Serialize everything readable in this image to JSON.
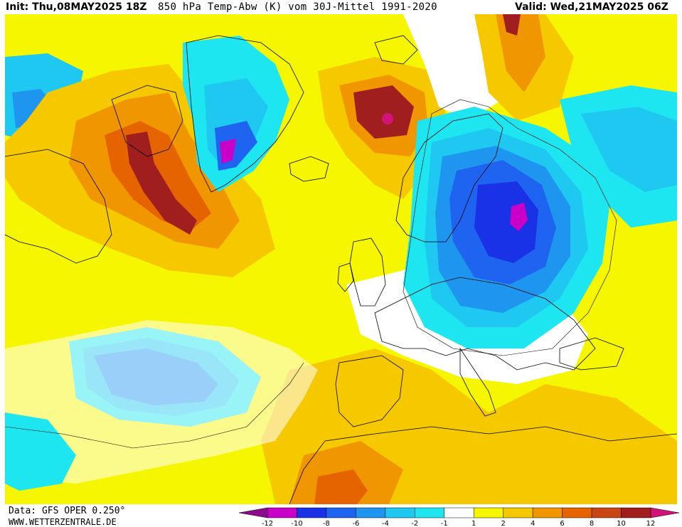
{
  "header": {
    "init": "Init: Thu,08MAY2025 18Z",
    "title": "850 hPa Temp-Abw (K) vom 30J-Mittel 1991-2020",
    "valid": "Valid: Wed,21MAY2025 06Z"
  },
  "footer": {
    "data_source": "Data: GFS OPER 0.250°",
    "website": "WWW.WETTERZENTRALE.DE"
  },
  "legend": {
    "ticks": [
      "-12",
      "-10",
      "-8",
      "-6",
      "-4",
      "-2",
      "-1",
      "1",
      "2",
      "4",
      "6",
      "8",
      "10",
      "12"
    ],
    "colors": [
      "#8c0a8c",
      "#c800c8",
      "#1a32e6",
      "#1e64f0",
      "#1e96f0",
      "#1ec8f0",
      "#1ee6f0",
      "#ffffff",
      "#f6f600",
      "#f6c800",
      "#f09600",
      "#e66400",
      "#c84614",
      "#a01e1e",
      "#d21478"
    ]
  },
  "map": {
    "palette": {
      "ocean_warm": "#f6c800",
      "warm": "#f09600",
      "hot": "#e66400",
      "very_hot": "#a01e1e",
      "neutral": "#ffffff",
      "slight_cold": "#1ee6f0",
      "cold": "#1ec8f0",
      "colder": "#1e96f0",
      "very_cold": "#1e64f0",
      "extreme_cold": "#1a32e6",
      "extreme": "#c800c8"
    }
  }
}
